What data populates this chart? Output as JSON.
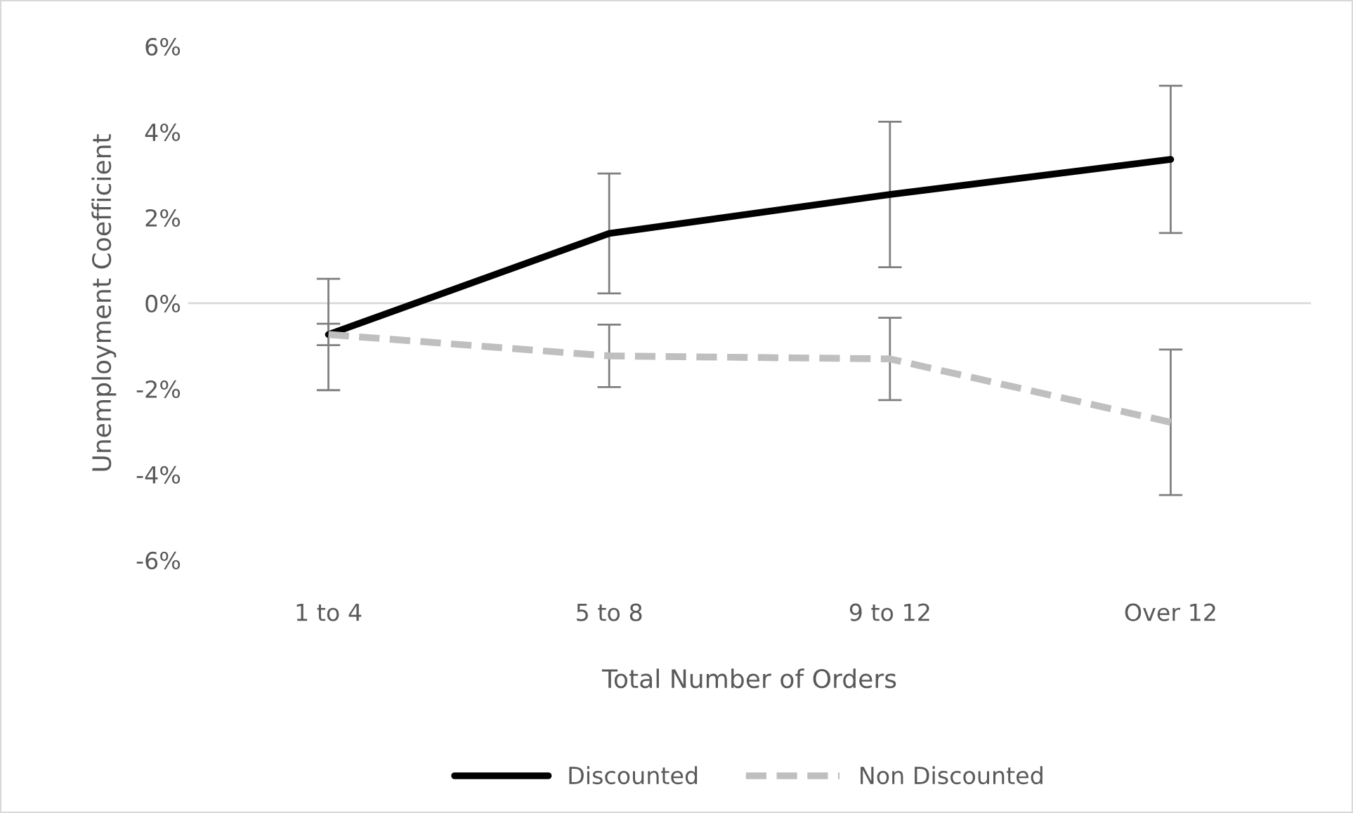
{
  "chart_data": {
    "type": "line",
    "xlabel": "Total Number of Orders",
    "ylabel": "Unemployment Coefficient",
    "categories": [
      "1 to 4",
      "5 to 8",
      "9 to 12",
      "Over 12"
    ],
    "series": [
      {
        "name": "Discounted",
        "color": "#000000",
        "line_style": "solid",
        "values": [
          -0.73,
          1.63,
          2.54,
          3.36
        ],
        "errors": [
          1.3,
          1.4,
          1.7,
          1.72
        ]
      },
      {
        "name": "Non Discounted",
        "color": "#bfbfbf",
        "line_style": "dashed",
        "values": [
          -0.73,
          -1.23,
          -1.3,
          -2.78
        ],
        "errors": [
          0.25,
          0.73,
          0.96,
          1.7
        ]
      }
    ],
    "ylim": [
      -6,
      6
    ],
    "yticks": [
      {
        "value": -6,
        "label": "-6%"
      },
      {
        "value": -4,
        "label": "-4%"
      },
      {
        "value": -2,
        "label": "-2%"
      },
      {
        "value": 0,
        "label": "0%"
      },
      {
        "value": 2,
        "label": "2%"
      },
      {
        "value": 4,
        "label": "4%"
      },
      {
        "value": 6,
        "label": "6%"
      }
    ],
    "ref_lines": [
      {
        "axis": "y",
        "value": 0,
        "color": "#d9d9d9"
      }
    ],
    "grid": false,
    "legend": "bottom",
    "marker": "none"
  }
}
